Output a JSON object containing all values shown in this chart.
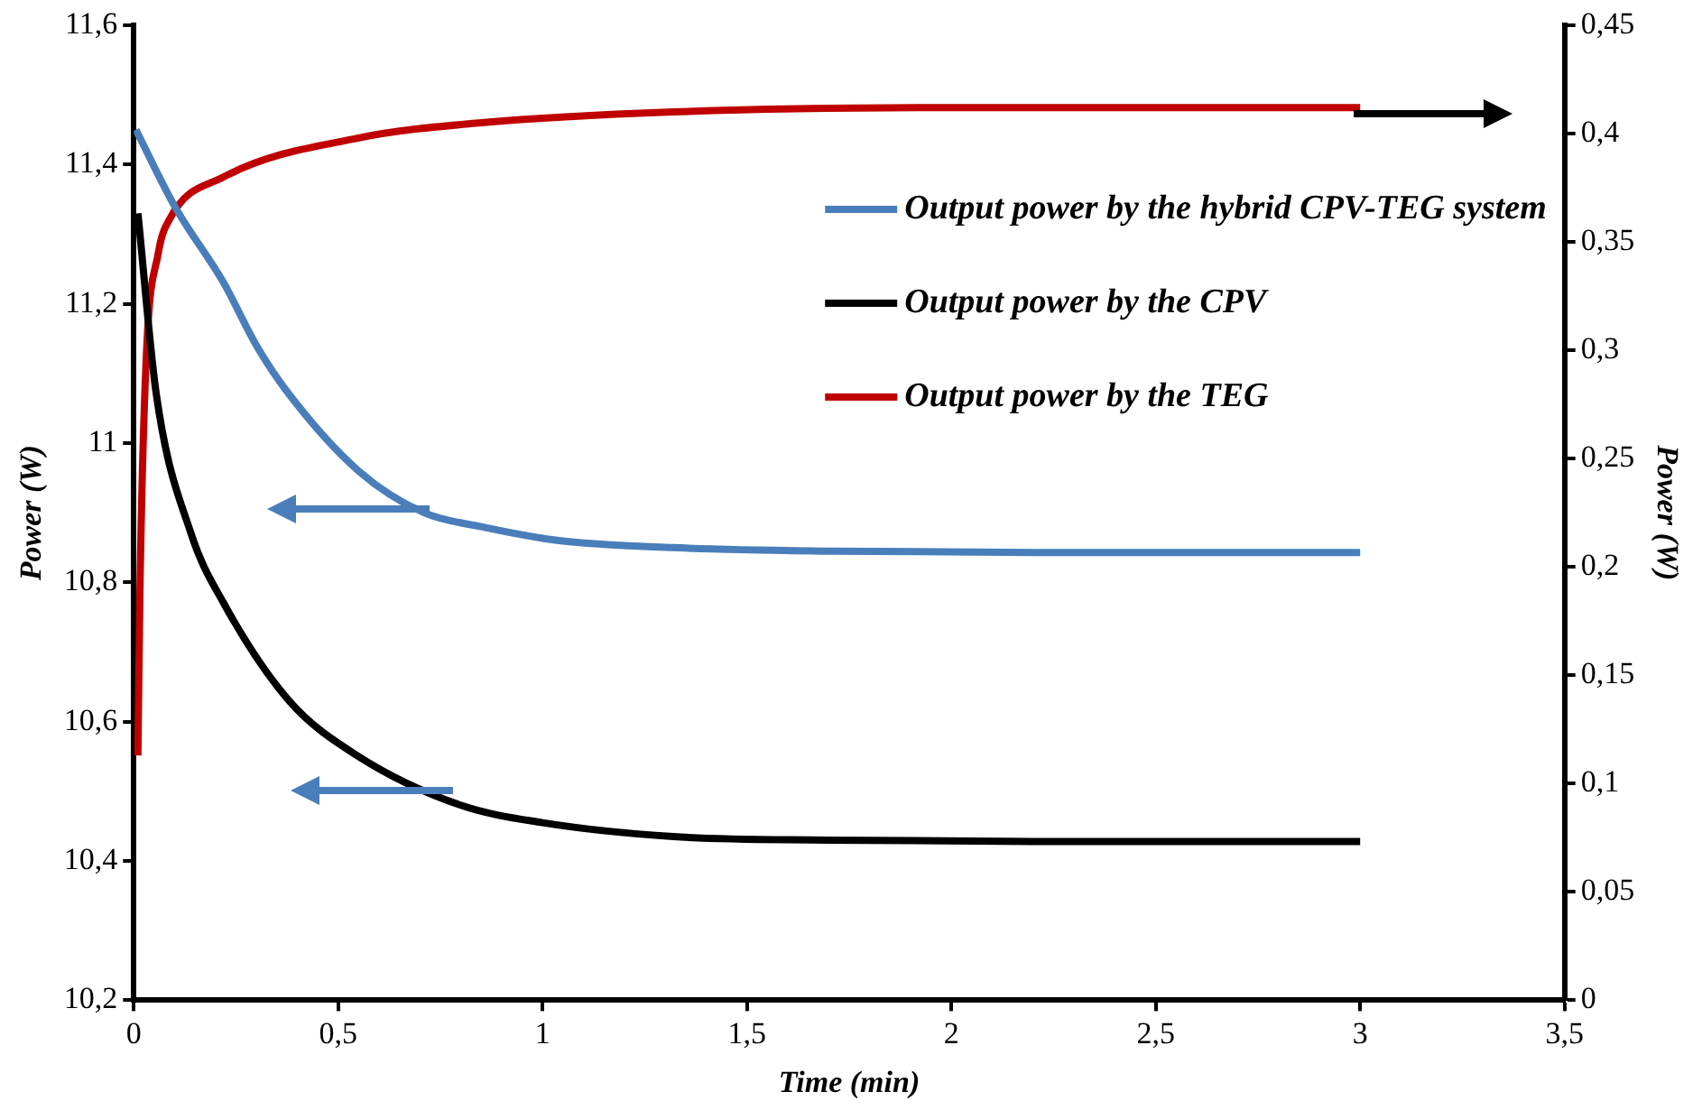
{
  "chart_data": {
    "type": "line",
    "xlabel": "Time (min)",
    "ylabel": "Power (W)",
    "y2label": "Power (W)",
    "xlim": [
      0,
      3.5
    ],
    "xticks": [
      0,
      {
        "value": 0.5,
        "label": "0,5"
      },
      1,
      {
        "value": 1.5,
        "label": "1,5"
      },
      2,
      {
        "value": 2.5,
        "label": "2,5"
      },
      3,
      {
        "value": 3.5,
        "label": "3,5"
      }
    ],
    "ylim": [
      10.2,
      11.6
    ],
    "yticks": [
      {
        "value": 10.2,
        "label": "10,2"
      },
      {
        "value": 10.4,
        "label": "10,4"
      },
      {
        "value": 10.6,
        "label": "10,6"
      },
      {
        "value": 10.8,
        "label": "10,8"
      },
      11,
      {
        "value": 11.2,
        "label": "11,2"
      },
      {
        "value": 11.4,
        "label": "11,4"
      },
      {
        "value": 11.6,
        "label": "11,6"
      }
    ],
    "y2lim": [
      0,
      0.45
    ],
    "y2ticks": [
      0,
      {
        "value": 0.05,
        "label": "0,05"
      },
      {
        "value": 0.1,
        "label": "0,1"
      },
      {
        "value": 0.15,
        "label": "0,15"
      },
      {
        "value": 0.2,
        "label": "0,2"
      },
      {
        "value": 0.25,
        "label": "0,25"
      },
      {
        "value": 0.3,
        "label": "0,3"
      },
      {
        "value": 0.35,
        "label": "0,35"
      },
      {
        "value": 0.4,
        "label": "0,4"
      },
      {
        "value": 0.45,
        "label": "0,45"
      }
    ],
    "grid": false,
    "legend": "top right",
    "marker": "none",
    "line_style": "solid",
    "series": [
      {
        "name": "Output power by the hybrid CPV-TEG system",
        "color": "#4a7ebb",
        "x": [
          0.005,
          0.1,
          0.22,
          0.3,
          0.38,
          0.55,
          0.71,
          0.85,
          1.04,
          1.32,
          1.7,
          2.2,
          3
        ],
        "values": [
          11.45,
          11.34,
          11.23,
          11.14,
          11.07,
          10.96,
          10.9,
          10.88,
          10.86,
          10.85,
          10.845,
          10.843,
          10.843
        ]
      },
      {
        "name": "Output power by the CPV",
        "color": "#000000",
        "x": [
          0.01,
          0.055,
          0.14,
          0.22,
          0.38,
          0.55,
          0.8,
          1.0,
          1.32,
          1.7,
          2.2,
          3
        ],
        "values": [
          11.33,
          11.07,
          10.87,
          10.77,
          10.63,
          10.55,
          10.48,
          10.455,
          10.435,
          10.43,
          10.428,
          10.428
        ]
      },
      {
        "name": "Output power by the TEG",
        "color": "#c00000",
        "axis": "y2",
        "x": [
          0.01,
          0.015,
          0.03,
          0.06,
          0.086,
          0.22,
          0.55,
          0.85,
          1.32,
          2,
          3
        ],
        "values": [
          0.113,
          0.19,
          0.295,
          0.345,
          0.36,
          0.38,
          0.398,
          0.405,
          0.41,
          0.412,
          0.412
        ]
      }
    ]
  }
}
